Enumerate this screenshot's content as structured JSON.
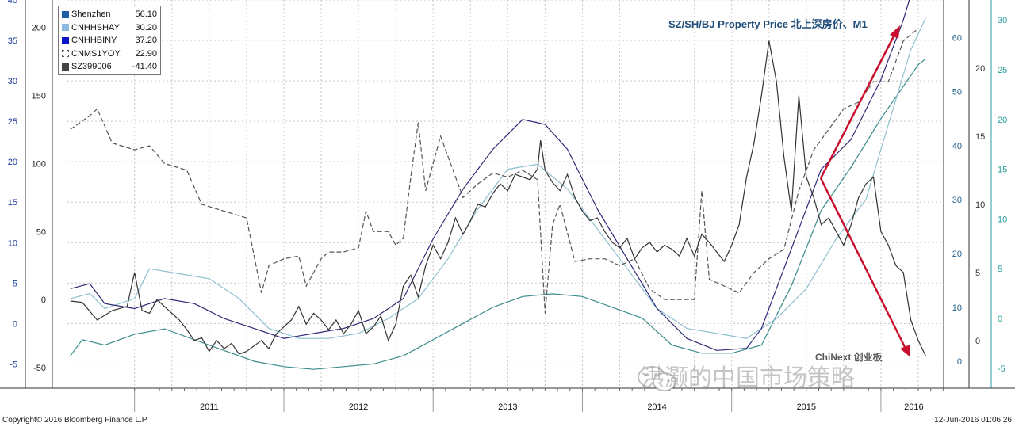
{
  "title": "SZ/SH/BJ Property Price 北上深房价、M1",
  "annotation": "ChiNext 创业板",
  "watermark": "洪灏的中国市场策略",
  "copyright": "Copyright© 2016 Bloomberg Finance L.P.",
  "timestamp": "12-Jun-2016 01:06:26",
  "legend": [
    {
      "name": "Shenzhen",
      "value": "56.10",
      "color": "#1f5fa6",
      "style": "solid"
    },
    {
      "name": "CNHHSHAY",
      "value": "30.20",
      "color": "#8fb8e0",
      "style": "solid"
    },
    {
      "name": "CNHHBINY",
      "value": "37.20",
      "color": "#0a14c8",
      "style": "solid"
    },
    {
      "name": "CNMS1YOY",
      "value": "22.90",
      "color": "#ffffff",
      "style": "dashed"
    },
    {
      "name": "SZ399006",
      "value": "-41.40",
      "color": "#444444",
      "style": "solid"
    }
  ],
  "chart_data": {
    "type": "line",
    "x_categories": [
      "2011",
      "2012",
      "2013",
      "2014",
      "2015",
      "2016"
    ],
    "x_range": [
      2010.55,
      2016.42
    ],
    "axes": {
      "left_outer": {
        "ticks": [
          "40",
          "35",
          "30",
          "25",
          "20",
          "15",
          "10",
          "5",
          "0",
          "-5"
        ],
        "range": [
          -8,
          40
        ]
      },
      "left_inner": {
        "ticks": [
          "200",
          "150",
          "100",
          "50",
          "0",
          "-50"
        ],
        "range": [
          -65,
          220
        ]
      },
      "right_inner": {
        "ticks": [
          "60",
          "50",
          "40",
          "30",
          "20",
          "10",
          "0"
        ],
        "range": [
          -5,
          67
        ]
      },
      "right_mid": {
        "ticks": [
          "20",
          "15",
          "10",
          "5",
          "0"
        ],
        "range": [
          -3.5,
          25
        ]
      },
      "right_outer": {
        "ticks": [
          "30",
          "25",
          "20",
          "15",
          "10",
          "5",
          "0",
          "-5"
        ],
        "range": [
          -7,
          32
        ]
      }
    },
    "series": [
      {
        "name": "Shenzhen",
        "axis": "right_inner",
        "color": "#3d8c8c",
        "points": [
          [
            2010.57,
            1
          ],
          [
            2010.65,
            4
          ],
          [
            2010.8,
            3
          ],
          [
            2011.0,
            5
          ],
          [
            2011.2,
            6
          ],
          [
            2011.4,
            4
          ],
          [
            2011.6,
            2
          ],
          [
            2011.8,
            0
          ],
          [
            2012.0,
            -1
          ],
          [
            2012.2,
            -1.5
          ],
          [
            2012.4,
            -1
          ],
          [
            2012.6,
            -0.5
          ],
          [
            2012.8,
            1
          ],
          [
            2013.0,
            4
          ],
          [
            2013.2,
            7
          ],
          [
            2013.4,
            10
          ],
          [
            2013.6,
            12
          ],
          [
            2013.8,
            12.5
          ],
          [
            2014.0,
            12
          ],
          [
            2014.2,
            10
          ],
          [
            2014.4,
            8
          ],
          [
            2014.6,
            3
          ],
          [
            2014.8,
            1.5
          ],
          [
            2015.0,
            1.5
          ],
          [
            2015.2,
            3
          ],
          [
            2015.4,
            14
          ],
          [
            2015.6,
            28
          ],
          [
            2015.8,
            36
          ],
          [
            2016.0,
            45
          ],
          [
            2016.15,
            51
          ],
          [
            2016.25,
            55
          ],
          [
            2016.3,
            56.1
          ]
        ]
      },
      {
        "name": "CNHHSHAY",
        "axis": "right_outer",
        "color": "#8fc0cf",
        "points": [
          [
            2010.57,
            2
          ],
          [
            2010.7,
            2.5
          ],
          [
            2010.8,
            1
          ],
          [
            2011.0,
            2
          ],
          [
            2011.1,
            5
          ],
          [
            2011.3,
            4.5
          ],
          [
            2011.5,
            4
          ],
          [
            2011.7,
            2
          ],
          [
            2011.9,
            -1
          ],
          [
            2012.1,
            -2
          ],
          [
            2012.3,
            -2
          ],
          [
            2012.5,
            -1.5
          ],
          [
            2012.7,
            0
          ],
          [
            2012.9,
            2
          ],
          [
            2013.1,
            6
          ],
          [
            2013.3,
            11
          ],
          [
            2013.5,
            15
          ],
          [
            2013.7,
            15.5
          ],
          [
            2013.9,
            13
          ],
          [
            2014.1,
            9
          ],
          [
            2014.3,
            5
          ],
          [
            2014.5,
            1
          ],
          [
            2014.7,
            -1
          ],
          [
            2014.9,
            -1.5
          ],
          [
            2015.1,
            -2
          ],
          [
            2015.3,
            0
          ],
          [
            2015.5,
            3
          ],
          [
            2015.7,
            8
          ],
          [
            2015.9,
            12
          ],
          [
            2016.0,
            17
          ],
          [
            2016.1,
            22
          ],
          [
            2016.2,
            27
          ],
          [
            2016.3,
            30.2
          ]
        ]
      },
      {
        "name": "CNHHBINY",
        "axis": "right_outer",
        "color": "#2d2a78",
        "points": [
          [
            2010.57,
            3
          ],
          [
            2010.7,
            3.5
          ],
          [
            2010.8,
            1.5
          ],
          [
            2011.0,
            1
          ],
          [
            2011.2,
            2
          ],
          [
            2011.4,
            1.5
          ],
          [
            2011.6,
            0
          ],
          [
            2011.8,
            -1
          ],
          [
            2012.0,
            -2
          ],
          [
            2012.2,
            -1.5
          ],
          [
            2012.4,
            -1
          ],
          [
            2012.6,
            0
          ],
          [
            2012.8,
            2
          ],
          [
            2013.0,
            8
          ],
          [
            2013.2,
            13
          ],
          [
            2013.4,
            17
          ],
          [
            2013.6,
            20
          ],
          [
            2013.75,
            19.5
          ],
          [
            2013.9,
            17
          ],
          [
            2014.1,
            11
          ],
          [
            2014.3,
            6
          ],
          [
            2014.5,
            1
          ],
          [
            2014.7,
            -2
          ],
          [
            2014.9,
            -3.2
          ],
          [
            2015.1,
            -3
          ],
          [
            2015.2,
            -1
          ],
          [
            2015.4,
            7
          ],
          [
            2015.6,
            15
          ],
          [
            2015.8,
            18
          ],
          [
            2016.0,
            24
          ],
          [
            2016.15,
            30
          ],
          [
            2016.25,
            35
          ],
          [
            2016.3,
            37.2
          ]
        ]
      },
      {
        "name": "CNMS1YOY",
        "axis": "right_mid",
        "color": "#555555",
        "dashed": true,
        "points": [
          [
            2010.57,
            15.5
          ],
          [
            2010.7,
            16.5
          ],
          [
            2010.75,
            17
          ],
          [
            2010.85,
            14.5
          ],
          [
            2011.0,
            14
          ],
          [
            2011.1,
            14.3
          ],
          [
            2011.2,
            13
          ],
          [
            2011.35,
            12.5
          ],
          [
            2011.45,
            10
          ],
          [
            2011.6,
            9.5
          ],
          [
            2011.75,
            9
          ],
          [
            2011.85,
            3.5
          ],
          [
            2011.9,
            5.5
          ],
          [
            2012.0,
            6
          ],
          [
            2012.1,
            6.2
          ],
          [
            2012.15,
            4
          ],
          [
            2012.25,
            6
          ],
          [
            2012.3,
            6.5
          ],
          [
            2012.4,
            6.5
          ],
          [
            2012.5,
            6.8
          ],
          [
            2012.55,
            9.5
          ],
          [
            2012.6,
            8
          ],
          [
            2012.7,
            8
          ],
          [
            2012.75,
            7
          ],
          [
            2012.8,
            7.5
          ],
          [
            2012.85,
            12
          ],
          [
            2012.9,
            16
          ],
          [
            2012.95,
            11
          ],
          [
            2013.05,
            15
          ],
          [
            2013.1,
            13.5
          ],
          [
            2013.2,
            10.5
          ],
          [
            2013.3,
            11.5
          ],
          [
            2013.4,
            12.3
          ],
          [
            2013.5,
            12
          ],
          [
            2013.6,
            12.5
          ],
          [
            2013.7,
            11.8
          ],
          [
            2013.75,
            2
          ],
          [
            2013.8,
            8.5
          ],
          [
            2013.85,
            10
          ],
          [
            2013.95,
            5.8
          ],
          [
            2014.05,
            6
          ],
          [
            2014.15,
            6
          ],
          [
            2014.25,
            5.5
          ],
          [
            2014.35,
            6
          ],
          [
            2014.45,
            3.8
          ],
          [
            2014.55,
            3
          ],
          [
            2014.65,
            3
          ],
          [
            2014.75,
            3
          ],
          [
            2014.8,
            11
          ],
          [
            2014.85,
            4.5
          ],
          [
            2014.95,
            4
          ],
          [
            2015.05,
            3.5
          ],
          [
            2015.15,
            5
          ],
          [
            2015.25,
            6
          ],
          [
            2015.35,
            6.7
          ],
          [
            2015.45,
            11
          ],
          [
            2015.55,
            14
          ],
          [
            2015.65,
            15.5
          ],
          [
            2015.75,
            17
          ],
          [
            2015.85,
            17.5
          ],
          [
            2015.95,
            19
          ],
          [
            2016.05,
            19
          ],
          [
            2016.15,
            22
          ],
          [
            2016.25,
            22.9
          ]
        ]
      },
      {
        "name": "SZ399006",
        "axis": "left_inner",
        "color": "#333333",
        "points": [
          [
            2010.57,
            -1
          ],
          [
            2010.65,
            -2
          ],
          [
            2010.75,
            -15
          ],
          [
            2010.85,
            -8
          ],
          [
            2010.95,
            -5
          ],
          [
            2011.0,
            20
          ],
          [
            2011.05,
            -8
          ],
          [
            2011.1,
            -10
          ],
          [
            2011.15,
            0
          ],
          [
            2011.25,
            -10
          ],
          [
            2011.3,
            -15
          ],
          [
            2011.35,
            -22
          ],
          [
            2011.4,
            -30
          ],
          [
            2011.45,
            -28
          ],
          [
            2011.5,
            -38
          ],
          [
            2011.55,
            -30
          ],
          [
            2011.6,
            -36
          ],
          [
            2011.65,
            -32
          ],
          [
            2011.7,
            -40
          ],
          [
            2011.75,
            -38
          ],
          [
            2011.8,
            -34
          ],
          [
            2011.85,
            -30
          ],
          [
            2011.9,
            -36
          ],
          [
            2011.95,
            -25
          ],
          [
            2012.0,
            -20
          ],
          [
            2012.05,
            -15
          ],
          [
            2012.1,
            -5
          ],
          [
            2012.15,
            -18
          ],
          [
            2012.2,
            -10
          ],
          [
            2012.25,
            -15
          ],
          [
            2012.3,
            -22
          ],
          [
            2012.35,
            -15
          ],
          [
            2012.4,
            -25
          ],
          [
            2012.45,
            -18
          ],
          [
            2012.5,
            -8
          ],
          [
            2012.55,
            -25
          ],
          [
            2012.6,
            -20
          ],
          [
            2012.65,
            -12
          ],
          [
            2012.7,
            -30
          ],
          [
            2012.75,
            -18
          ],
          [
            2012.8,
            10
          ],
          [
            2012.85,
            18
          ],
          [
            2012.9,
            2
          ],
          [
            2012.95,
            25
          ],
          [
            2013.0,
            40
          ],
          [
            2013.05,
            30
          ],
          [
            2013.1,
            42
          ],
          [
            2013.15,
            60
          ],
          [
            2013.2,
            48
          ],
          [
            2013.25,
            58
          ],
          [
            2013.3,
            70
          ],
          [
            2013.35,
            68
          ],
          [
            2013.4,
            78
          ],
          [
            2013.45,
            85
          ],
          [
            2013.5,
            80
          ],
          [
            2013.55,
            92
          ],
          [
            2013.6,
            90
          ],
          [
            2013.65,
            88
          ],
          [
            2013.7,
            96
          ],
          [
            2013.72,
            117
          ],
          [
            2013.75,
            95
          ],
          [
            2013.8,
            86
          ],
          [
            2013.85,
            80
          ],
          [
            2013.9,
            92
          ],
          [
            2013.95,
            75
          ],
          [
            2014.0,
            65
          ],
          [
            2014.05,
            58
          ],
          [
            2014.1,
            60
          ],
          [
            2014.15,
            50
          ],
          [
            2014.2,
            42
          ],
          [
            2014.25,
            38
          ],
          [
            2014.3,
            45
          ],
          [
            2014.35,
            30
          ],
          [
            2014.4,
            38
          ],
          [
            2014.45,
            42
          ],
          [
            2014.5,
            35
          ],
          [
            2014.55,
            40
          ],
          [
            2014.6,
            37
          ],
          [
            2014.65,
            32
          ],
          [
            2014.7,
            45
          ],
          [
            2014.75,
            32
          ],
          [
            2014.8,
            48
          ],
          [
            2014.85,
            42
          ],
          [
            2014.9,
            35
          ],
          [
            2014.95,
            28
          ],
          [
            2015.0,
            40
          ],
          [
            2015.05,
            55
          ],
          [
            2015.1,
            90
          ],
          [
            2015.15,
            115
          ],
          [
            2015.2,
            150
          ],
          [
            2015.25,
            190
          ],
          [
            2015.3,
            160
          ],
          [
            2015.35,
            105
          ],
          [
            2015.4,
            65
          ],
          [
            2015.45,
            150
          ],
          [
            2015.5,
            90
          ],
          [
            2015.55,
            75
          ],
          [
            2015.6,
            55
          ],
          [
            2015.65,
            60
          ],
          [
            2015.7,
            50
          ],
          [
            2015.75,
            40
          ],
          [
            2015.8,
            55
          ],
          [
            2015.85,
            75
          ],
          [
            2015.9,
            85
          ],
          [
            2015.95,
            90
          ],
          [
            2016.0,
            50
          ],
          [
            2016.05,
            40
          ],
          [
            2016.1,
            25
          ],
          [
            2016.15,
            20
          ],
          [
            2016.2,
            -15
          ],
          [
            2016.25,
            -30
          ],
          [
            2016.3,
            -41.4
          ]
        ]
      }
    ]
  }
}
